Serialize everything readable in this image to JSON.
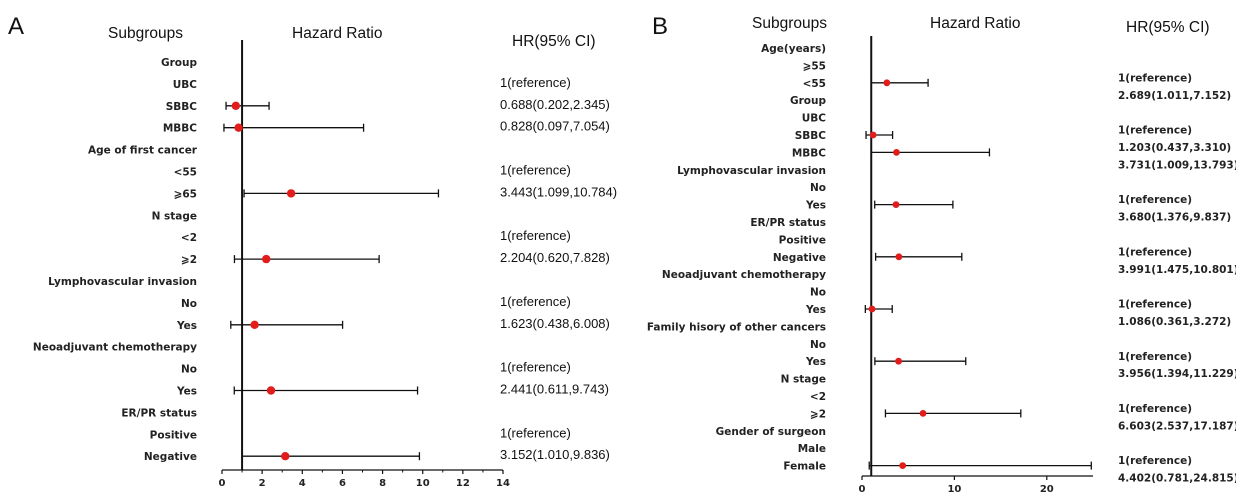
{
  "chart_data": [
    {
      "type": "forest",
      "panel": "A",
      "col_subgroups": "Subgroups",
      "col_hr": "Hazard Ratio",
      "col_ci": "HR(95% CI)",
      "xlim": [
        0,
        14
      ],
      "xticks": [
        "0",
        "2",
        "4",
        "6",
        "8",
        "10",
        "12",
        "14"
      ],
      "reference_line": 1,
      "rows": [
        {
          "label": "Group",
          "hr": null,
          "lo": null,
          "hi": null,
          "text": ""
        },
        {
          "label": "UBC",
          "hr": null,
          "lo": null,
          "hi": null,
          "text": "1(reference)"
        },
        {
          "label": "SBBC",
          "hr": 0.688,
          "lo": 0.202,
          "hi": 2.345,
          "text": "0.688(0.202,2.345)"
        },
        {
          "label": "MBBC",
          "hr": 0.828,
          "lo": 0.097,
          "hi": 7.054,
          "text": "0.828(0.097,7.054)"
        },
        {
          "label": "Age of first cancer",
          "hr": null,
          "lo": null,
          "hi": null,
          "text": ""
        },
        {
          "label": "<55",
          "hr": null,
          "lo": null,
          "hi": null,
          "text": "1(reference)"
        },
        {
          "label": "⩾65",
          "hr": 3.443,
          "lo": 1.099,
          "hi": 10.784,
          "text": "3.443(1.099,10.784)"
        },
        {
          "label": "N stage",
          "hr": null,
          "lo": null,
          "hi": null,
          "text": ""
        },
        {
          "label": "<2",
          "hr": null,
          "lo": null,
          "hi": null,
          "text": "1(reference)"
        },
        {
          "label": "⩾2",
          "hr": 2.204,
          "lo": 0.62,
          "hi": 7.828,
          "text": "2.204(0.620,7.828)"
        },
        {
          "label": "Lymphovascular invasion",
          "hr": null,
          "lo": null,
          "hi": null,
          "text": ""
        },
        {
          "label": "No",
          "hr": null,
          "lo": null,
          "hi": null,
          "text": "1(reference)"
        },
        {
          "label": "Yes",
          "hr": 1.623,
          "lo": 0.438,
          "hi": 6.008,
          "text": "1.623(0.438,6.008)"
        },
        {
          "label": "Neoadjuvant chemotherapy",
          "hr": null,
          "lo": null,
          "hi": null,
          "text": ""
        },
        {
          "label": "No",
          "hr": null,
          "lo": null,
          "hi": null,
          "text": "1(reference)"
        },
        {
          "label": "Yes",
          "hr": 2.441,
          "lo": 0.611,
          "hi": 9.743,
          "text": "2.441(0.611,9.743)"
        },
        {
          "label": "ER/PR status",
          "hr": null,
          "lo": null,
          "hi": null,
          "text": ""
        },
        {
          "label": "Positive",
          "hr": null,
          "lo": null,
          "hi": null,
          "text": "1(reference)"
        },
        {
          "label": "Negative",
          "hr": 3.152,
          "lo": 1.01,
          "hi": 9.836,
          "text": "3.152(1.010,9.836)"
        }
      ]
    },
    {
      "type": "forest",
      "panel": "B",
      "col_subgroups": "Subgroups",
      "col_hr": "Hazard Ratio",
      "col_ci": "HR(95% CI)",
      "xlim": [
        0,
        25
      ],
      "xticks": [
        "0",
        "10",
        "20"
      ],
      "reference_line": 1,
      "rows": [
        {
          "label": "Age(years)",
          "hr": null,
          "lo": null,
          "hi": null,
          "text": ""
        },
        {
          "label": "⩾55",
          "hr": null,
          "lo": null,
          "hi": null,
          "text": "1(reference)"
        },
        {
          "label": "<55",
          "hr": 2.689,
          "lo": 1.011,
          "hi": 7.152,
          "text": "2.689(1.011,7.152)"
        },
        {
          "label": "Group",
          "hr": null,
          "lo": null,
          "hi": null,
          "text": ""
        },
        {
          "label": "UBC",
          "hr": null,
          "lo": null,
          "hi": null,
          "text": "1(reference)"
        },
        {
          "label": "SBBC",
          "hr": 1.203,
          "lo": 0.437,
          "hi": 3.31,
          "text": "1.203(0.437,3.310)"
        },
        {
          "label": "MBBC",
          "hr": 3.731,
          "lo": 1.009,
          "hi": 13.793,
          "text": "3.731(1.009,13.793)"
        },
        {
          "label": "Lymphovascular invasion",
          "hr": null,
          "lo": null,
          "hi": null,
          "text": ""
        },
        {
          "label": "No",
          "hr": null,
          "lo": null,
          "hi": null,
          "text": "1(reference)"
        },
        {
          "label": "Yes",
          "hr": 3.68,
          "lo": 1.376,
          "hi": 9.837,
          "text": "3.680(1.376,9.837)"
        },
        {
          "label": "ER/PR status",
          "hr": null,
          "lo": null,
          "hi": null,
          "text": ""
        },
        {
          "label": "Positive",
          "hr": null,
          "lo": null,
          "hi": null,
          "text": "1(reference)"
        },
        {
          "label": "Negative",
          "hr": 3.991,
          "lo": 1.475,
          "hi": 10.801,
          "text": "3.991(1.475,10.801)"
        },
        {
          "label": "Neoadjuvant chemotherapy",
          "hr": null,
          "lo": null,
          "hi": null,
          "text": ""
        },
        {
          "label": "No",
          "hr": null,
          "lo": null,
          "hi": null,
          "text": "1(reference)"
        },
        {
          "label": "Yes",
          "hr": 1.086,
          "lo": 0.361,
          "hi": 3.272,
          "text": "1.086(0.361,3.272)"
        },
        {
          "label": "Family hisory of other cancers",
          "hr": null,
          "lo": null,
          "hi": null,
          "text": ""
        },
        {
          "label": "No",
          "hr": null,
          "lo": null,
          "hi": null,
          "text": "1(reference)"
        },
        {
          "label": "Yes",
          "hr": 3.956,
          "lo": 1.394,
          "hi": 11.229,
          "text": "3.956(1.394,11.229)"
        },
        {
          "label": "N stage",
          "hr": null,
          "lo": null,
          "hi": null,
          "text": ""
        },
        {
          "label": "<2",
          "hr": null,
          "lo": null,
          "hi": null,
          "text": "1(reference)"
        },
        {
          "label": "⩾2",
          "hr": 6.603,
          "lo": 2.537,
          "hi": 17.187,
          "text": "6.603(2.537,17.187)"
        },
        {
          "label": "Gender of surgeon",
          "hr": null,
          "lo": null,
          "hi": null,
          "text": ""
        },
        {
          "label": "Male",
          "hr": null,
          "lo": null,
          "hi": null,
          "text": "1(reference)"
        },
        {
          "label": "Female",
          "hr": 4.402,
          "lo": 0.781,
          "hi": 24.815,
          "text": "4.402(0.781,24.815)"
        }
      ]
    }
  ],
  "style": {
    "point_color": "#e21b1b",
    "line_color": "#111111"
  }
}
